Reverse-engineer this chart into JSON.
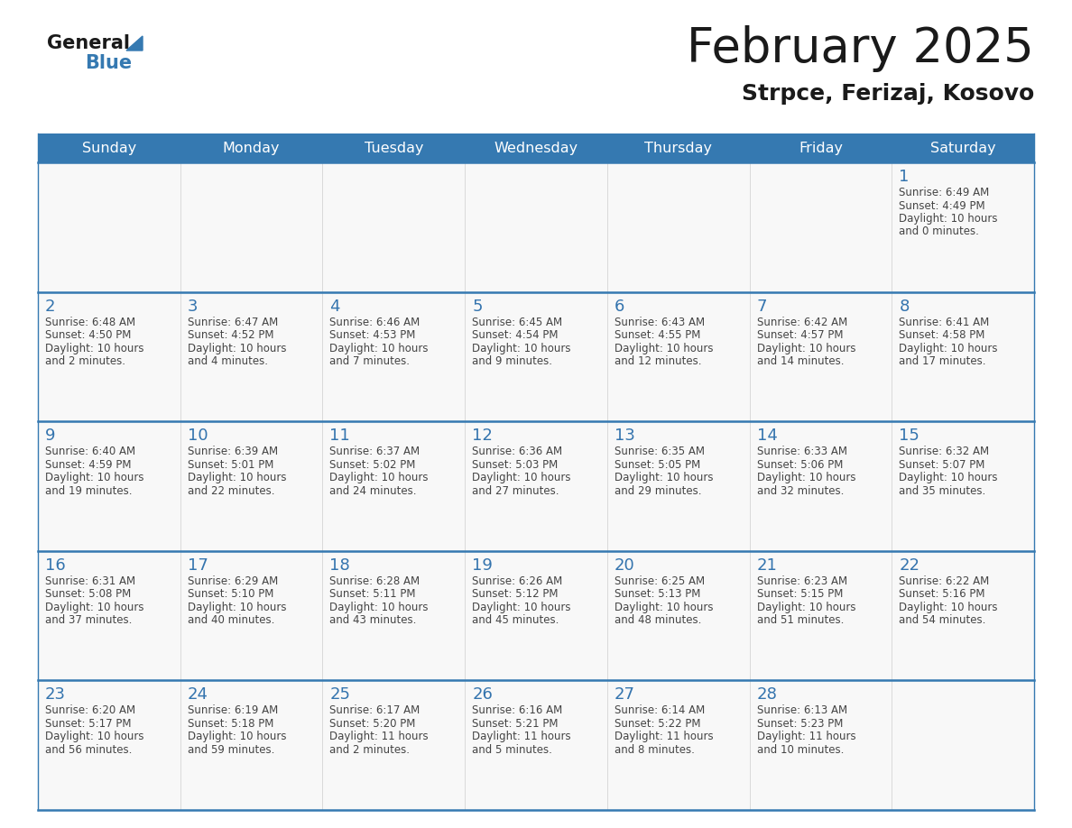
{
  "title": "February 2025",
  "subtitle": "Strpce, Ferizaj, Kosovo",
  "header_color": "#3579B1",
  "header_text_color": "#FFFFFF",
  "day_number_color": "#3474AE",
  "text_color": "#444444",
  "border_color": "#3579B1",
  "cell_border_color": "#CCCCCC",
  "cell_bg_color": "#F8F8F8",
  "days_of_week": [
    "Sunday",
    "Monday",
    "Tuesday",
    "Wednesday",
    "Thursday",
    "Friday",
    "Saturday"
  ],
  "calendar_data": [
    [
      {
        "day": "",
        "info": ""
      },
      {
        "day": "",
        "info": ""
      },
      {
        "day": "",
        "info": ""
      },
      {
        "day": "",
        "info": ""
      },
      {
        "day": "",
        "info": ""
      },
      {
        "day": "",
        "info": ""
      },
      {
        "day": "1",
        "info": "Sunrise: 6:49 AM\nSunset: 4:49 PM\nDaylight: 10 hours\nand 0 minutes."
      }
    ],
    [
      {
        "day": "2",
        "info": "Sunrise: 6:48 AM\nSunset: 4:50 PM\nDaylight: 10 hours\nand 2 minutes."
      },
      {
        "day": "3",
        "info": "Sunrise: 6:47 AM\nSunset: 4:52 PM\nDaylight: 10 hours\nand 4 minutes."
      },
      {
        "day": "4",
        "info": "Sunrise: 6:46 AM\nSunset: 4:53 PM\nDaylight: 10 hours\nand 7 minutes."
      },
      {
        "day": "5",
        "info": "Sunrise: 6:45 AM\nSunset: 4:54 PM\nDaylight: 10 hours\nand 9 minutes."
      },
      {
        "day": "6",
        "info": "Sunrise: 6:43 AM\nSunset: 4:55 PM\nDaylight: 10 hours\nand 12 minutes."
      },
      {
        "day": "7",
        "info": "Sunrise: 6:42 AM\nSunset: 4:57 PM\nDaylight: 10 hours\nand 14 minutes."
      },
      {
        "day": "8",
        "info": "Sunrise: 6:41 AM\nSunset: 4:58 PM\nDaylight: 10 hours\nand 17 minutes."
      }
    ],
    [
      {
        "day": "9",
        "info": "Sunrise: 6:40 AM\nSunset: 4:59 PM\nDaylight: 10 hours\nand 19 minutes."
      },
      {
        "day": "10",
        "info": "Sunrise: 6:39 AM\nSunset: 5:01 PM\nDaylight: 10 hours\nand 22 minutes."
      },
      {
        "day": "11",
        "info": "Sunrise: 6:37 AM\nSunset: 5:02 PM\nDaylight: 10 hours\nand 24 minutes."
      },
      {
        "day": "12",
        "info": "Sunrise: 6:36 AM\nSunset: 5:03 PM\nDaylight: 10 hours\nand 27 minutes."
      },
      {
        "day": "13",
        "info": "Sunrise: 6:35 AM\nSunset: 5:05 PM\nDaylight: 10 hours\nand 29 minutes."
      },
      {
        "day": "14",
        "info": "Sunrise: 6:33 AM\nSunset: 5:06 PM\nDaylight: 10 hours\nand 32 minutes."
      },
      {
        "day": "15",
        "info": "Sunrise: 6:32 AM\nSunset: 5:07 PM\nDaylight: 10 hours\nand 35 minutes."
      }
    ],
    [
      {
        "day": "16",
        "info": "Sunrise: 6:31 AM\nSunset: 5:08 PM\nDaylight: 10 hours\nand 37 minutes."
      },
      {
        "day": "17",
        "info": "Sunrise: 6:29 AM\nSunset: 5:10 PM\nDaylight: 10 hours\nand 40 minutes."
      },
      {
        "day": "18",
        "info": "Sunrise: 6:28 AM\nSunset: 5:11 PM\nDaylight: 10 hours\nand 43 minutes."
      },
      {
        "day": "19",
        "info": "Sunrise: 6:26 AM\nSunset: 5:12 PM\nDaylight: 10 hours\nand 45 minutes."
      },
      {
        "day": "20",
        "info": "Sunrise: 6:25 AM\nSunset: 5:13 PM\nDaylight: 10 hours\nand 48 minutes."
      },
      {
        "day": "21",
        "info": "Sunrise: 6:23 AM\nSunset: 5:15 PM\nDaylight: 10 hours\nand 51 minutes."
      },
      {
        "day": "22",
        "info": "Sunrise: 6:22 AM\nSunset: 5:16 PM\nDaylight: 10 hours\nand 54 minutes."
      }
    ],
    [
      {
        "day": "23",
        "info": "Sunrise: 6:20 AM\nSunset: 5:17 PM\nDaylight: 10 hours\nand 56 minutes."
      },
      {
        "day": "24",
        "info": "Sunrise: 6:19 AM\nSunset: 5:18 PM\nDaylight: 10 hours\nand 59 minutes."
      },
      {
        "day": "25",
        "info": "Sunrise: 6:17 AM\nSunset: 5:20 PM\nDaylight: 11 hours\nand 2 minutes."
      },
      {
        "day": "26",
        "info": "Sunrise: 6:16 AM\nSunset: 5:21 PM\nDaylight: 11 hours\nand 5 minutes."
      },
      {
        "day": "27",
        "info": "Sunrise: 6:14 AM\nSunset: 5:22 PM\nDaylight: 11 hours\nand 8 minutes."
      },
      {
        "day": "28",
        "info": "Sunrise: 6:13 AM\nSunset: 5:23 PM\nDaylight: 11 hours\nand 10 minutes."
      },
      {
        "day": "",
        "info": ""
      }
    ]
  ],
  "figsize": [
    11.88,
    9.18
  ],
  "dpi": 100
}
